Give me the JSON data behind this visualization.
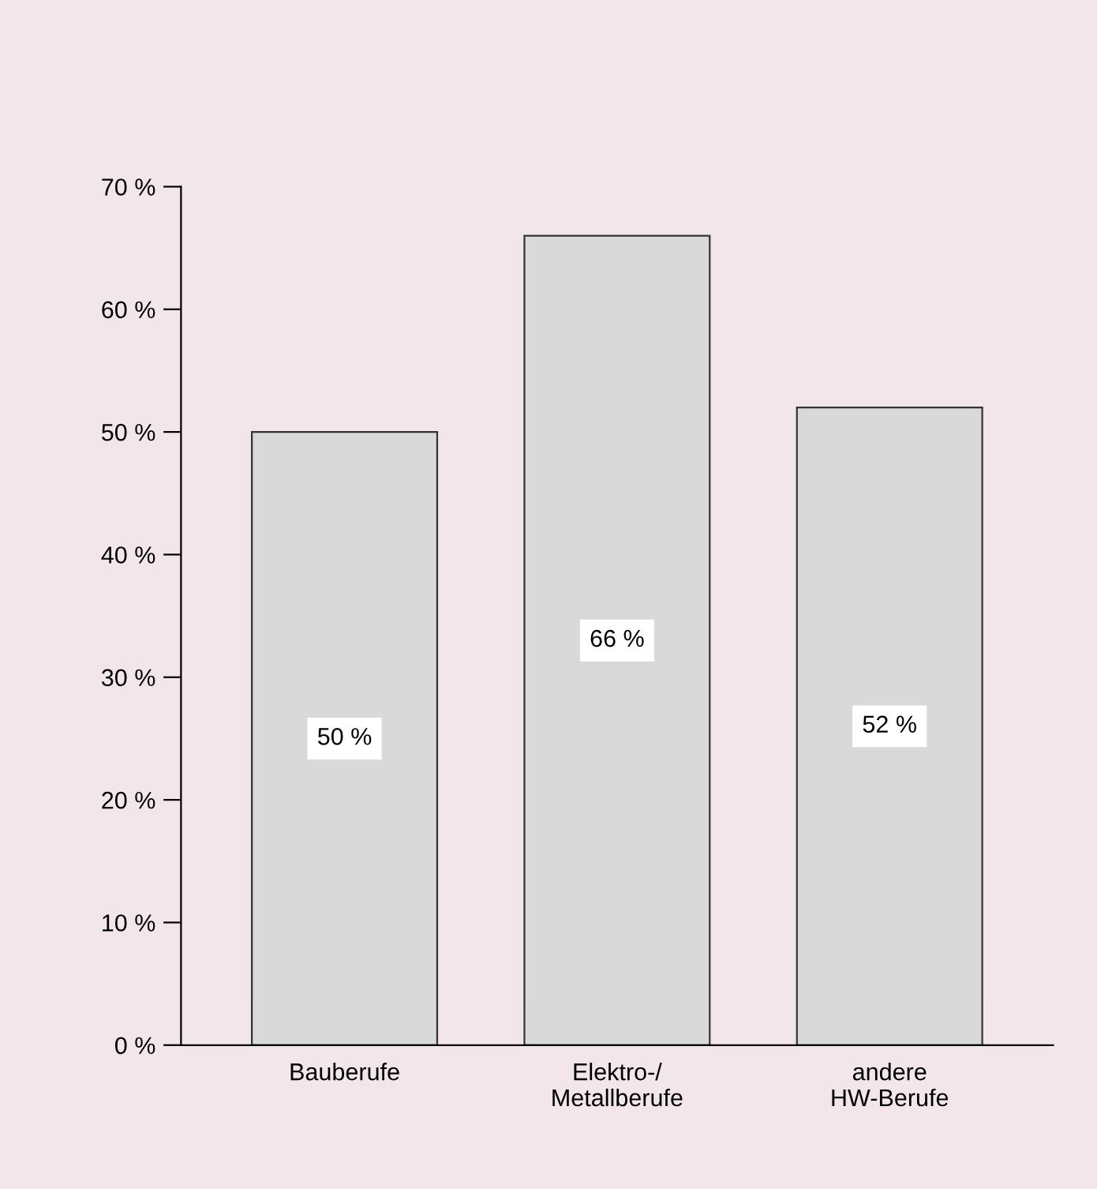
{
  "chart_data": {
    "type": "bar",
    "categories": [
      "Bauberufe",
      "Elektro-/\nMetallberufe",
      "andere\nHW-Berufe"
    ],
    "values": [
      50,
      66,
      52
    ],
    "value_labels": [
      "50 %",
      "66 %",
      "52 %"
    ],
    "color": "#d9d9d9",
    "ylim": [
      0,
      70
    ],
    "yticks": [
      {
        "value": 0,
        "label": "0 %"
      },
      {
        "value": 10,
        "label": "10 %"
      },
      {
        "value": 20,
        "label": "20 %"
      },
      {
        "value": 30,
        "label": "30 %"
      },
      {
        "value": 40,
        "label": "40 %"
      },
      {
        "value": 50,
        "label": "50 %"
      },
      {
        "value": 60,
        "label": "60 %"
      },
      {
        "value": 70,
        "label": "70 %"
      }
    ],
    "grid": false,
    "legend": false
  }
}
